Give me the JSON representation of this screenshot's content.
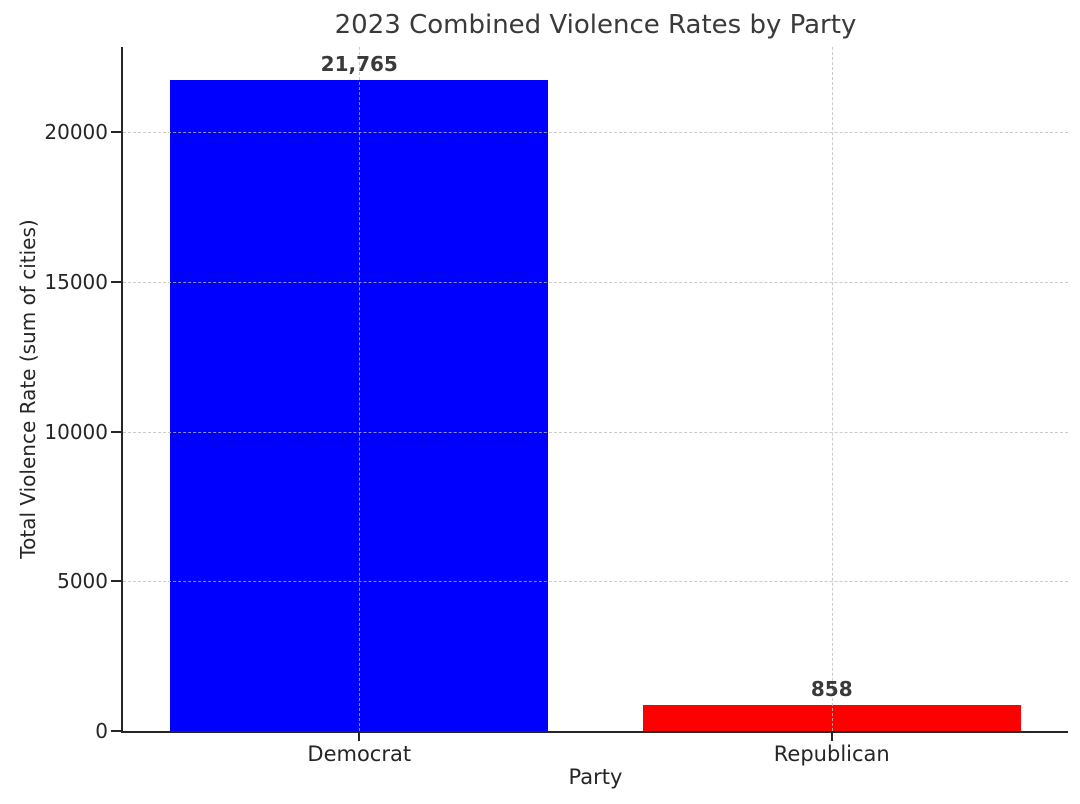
{
  "chart_data": {
    "type": "bar",
    "title": "2023 Combined Violence Rates by Party",
    "xlabel": "Party",
    "ylabel": "Total Violence Rate (sum of cities)",
    "categories": [
      "Democrat",
      "Republican"
    ],
    "values": [
      21765,
      858
    ],
    "bar_labels": [
      "21,765",
      "858"
    ],
    "bar_colors": [
      "#0000ff",
      "#ff0000"
    ],
    "yticks": [
      0,
      5000,
      10000,
      15000,
      20000
    ],
    "ytick_labels": [
      "0",
      "5000",
      "10000",
      "15000",
      "20000"
    ],
    "ylim": [
      0,
      22853
    ],
    "bar_width_fraction": 0.8,
    "grid": "dashed-both-axes-above-bars",
    "legend_position": "none",
    "grid_color": "#b9b9b9",
    "spine_color": "#262626",
    "text_color": "#3a3a3a"
  }
}
